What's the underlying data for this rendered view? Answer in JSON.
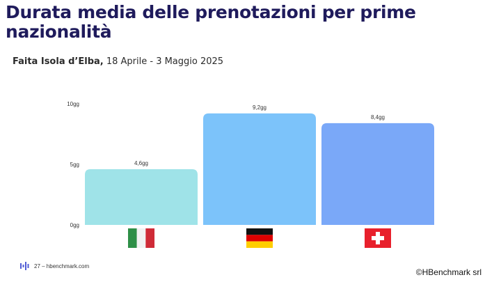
{
  "header": {
    "title": "Durata media delle prenotazioni per prime nazionalità",
    "subtitle_bold": "Faita Isola d’Elba,",
    "subtitle_rest": " 18 Aprile - 3 Maggio 2025"
  },
  "chart_data": {
    "type": "bar",
    "categories": [
      "Italia",
      "Germania",
      "Svizzera"
    ],
    "values": [
      4.6,
      9.2,
      8.4
    ],
    "value_labels": [
      "4,6gg",
      "9,2gg",
      "8,4gg"
    ],
    "bar_colors": [
      "#9fe3e8",
      "#7cc3fa",
      "#7aa8f8"
    ],
    "category_icons": [
      "italy-flag",
      "germany-flag",
      "switzerland-flag"
    ],
    "ylim": [
      0,
      10
    ],
    "yticks": [
      0,
      5,
      10
    ],
    "ytick_labels": [
      "0gg",
      "5gg",
      "10gg"
    ],
    "grid": false,
    "legend": "none"
  },
  "footer": {
    "page_text": "27 – hbenchmark.com",
    "copyright_text": "©HBenchmark srl"
  },
  "colors": {
    "title": "#1f1b5c",
    "logo": "#4f5bd5"
  }
}
